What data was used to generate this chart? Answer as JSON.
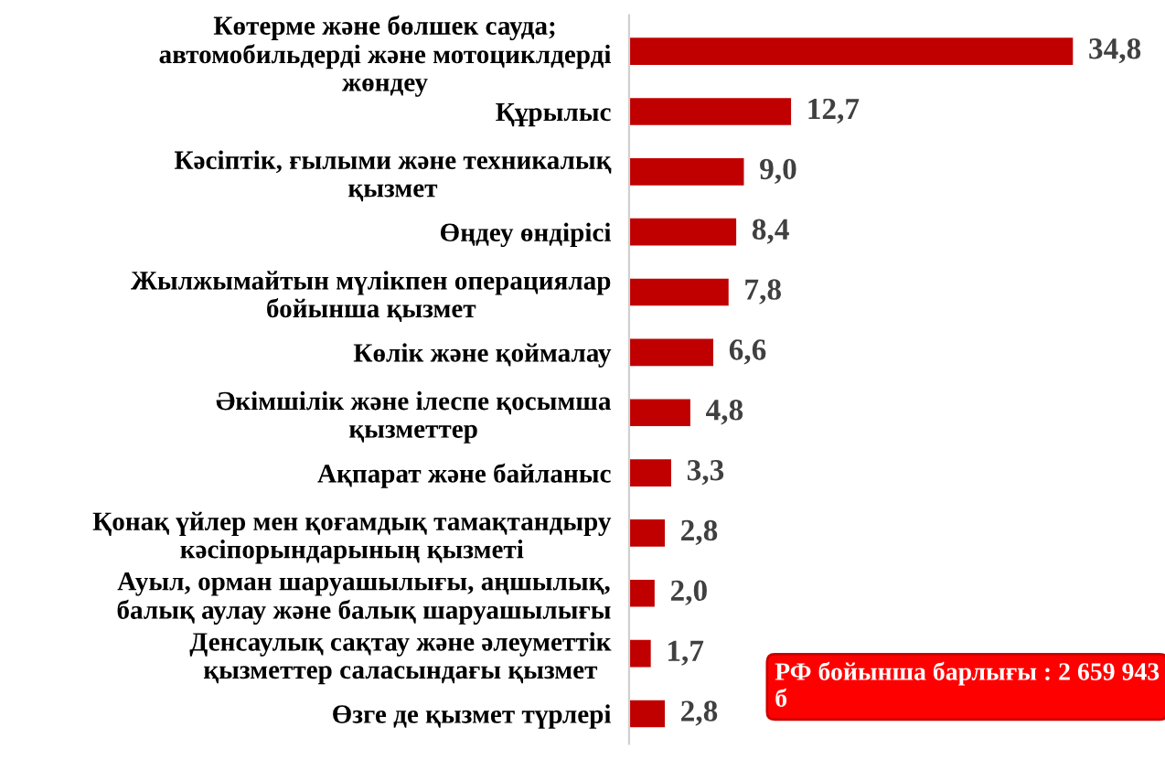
{
  "chart_data": {
    "type": "bar",
    "orientation": "horizontal",
    "categories": [
      "Көтерме және бөлшек сауда;\nавтомобильдерді және мотоциклдерді\nжөндеу",
      "Құрылыс",
      "Кәсіптік, ғылыми және техникалық\nқызмет",
      "Өңдеу өндірісі",
      "Жылжымайтын мүлікпен операциялар\nбойынша қызмет",
      "Көлік және қоймалау",
      "Әкімшілік және ілеспе қосымша\nқызметтер",
      "Ақпарат және байланыс",
      "Қонақ үйлер мен қоғамдық тамақтандыру\nкәсіпорындарының қызметі",
      "Ауыл, орман шаруашылығы, аңшылық,\nбалық аулау және балық шаруашылығы",
      "Денсаулық сақтау және әлеуметтік\nқызметтер саласындағы қызмет",
      "Өзге де қызмет түрлері"
    ],
    "values": [
      34.8,
      12.7,
      9.0,
      8.4,
      7.8,
      6.6,
      4.8,
      3.3,
      2.8,
      2.0,
      1.7,
      2.8
    ],
    "value_labels": [
      "34,8",
      "12,7",
      "9,0",
      "8,4",
      "7,8",
      "6,6",
      "4,8",
      "3,3",
      "2,8",
      "2,0",
      "1,7",
      "2,8"
    ],
    "color": "#c00000",
    "tick_labels": "y",
    "grid": false,
    "legend": false,
    "annotations": [
      "РФ бойынша барлығы : 2 659 943 б"
    ]
  }
}
